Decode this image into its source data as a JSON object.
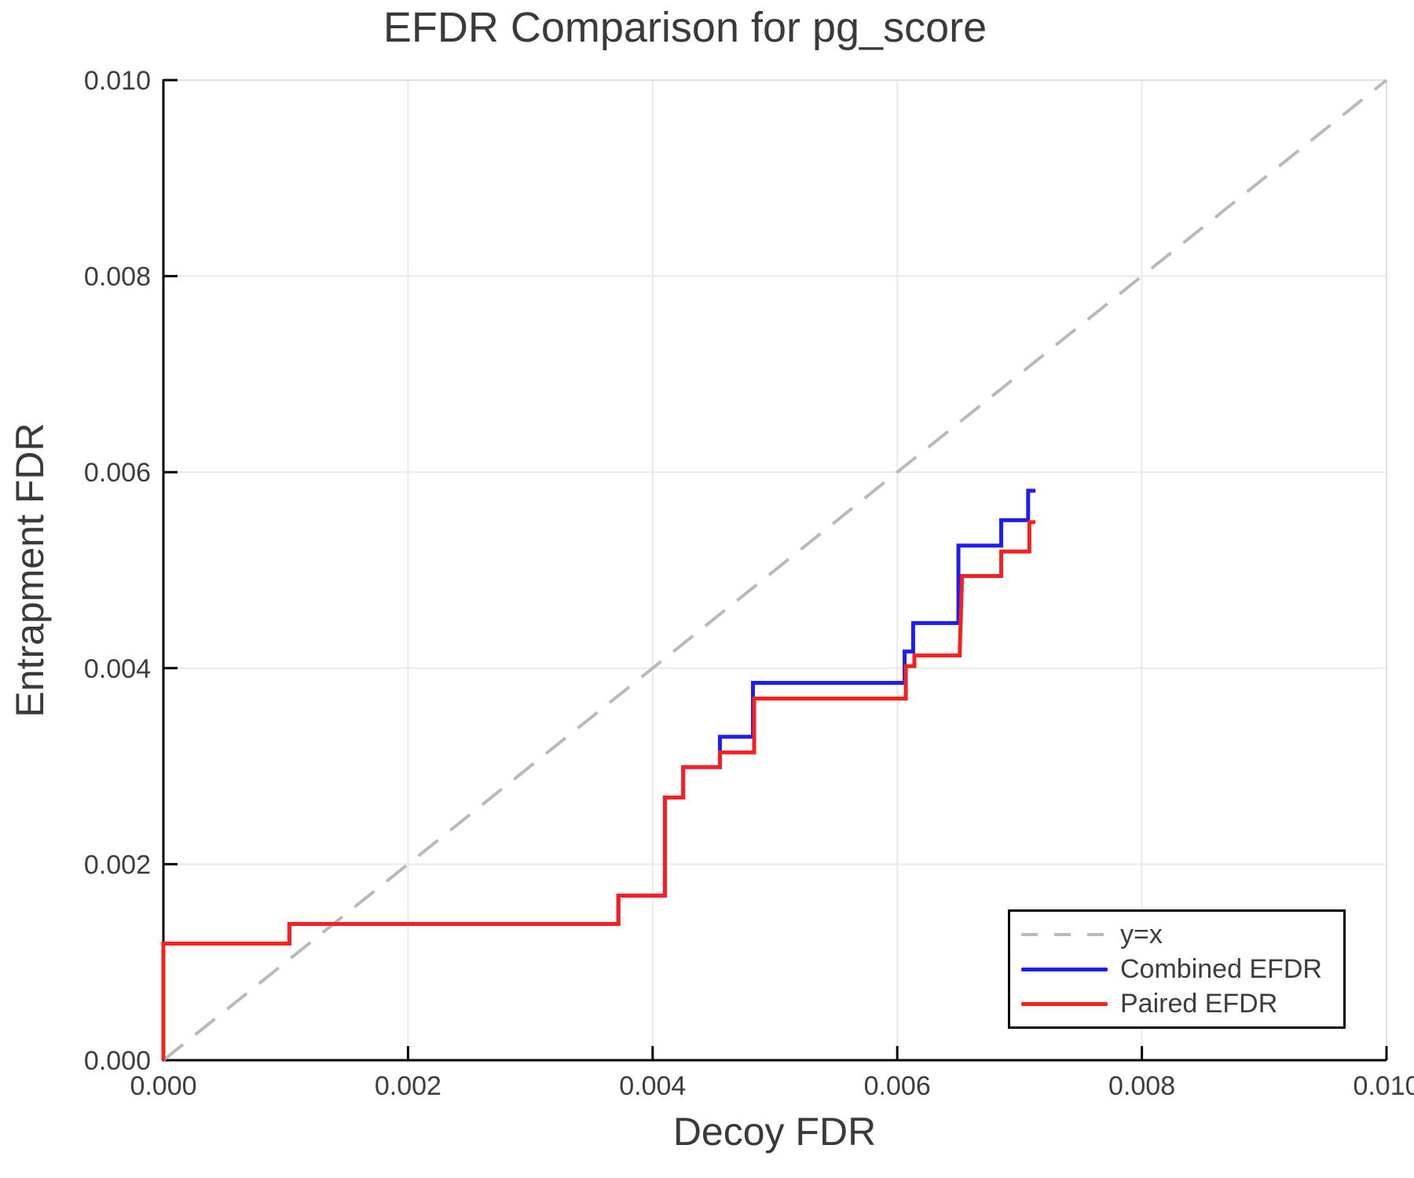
{
  "chart_data": {
    "type": "line",
    "subtype": "step-curves",
    "title": "EFDR Comparison for pg_score",
    "xlabel": "Decoy FDR",
    "ylabel": "Entrapment FDR",
    "xlim": [
      0.0,
      0.01
    ],
    "ylim": [
      0.0,
      0.01
    ],
    "grid": true,
    "x_ticks": {
      "values": [
        0.0,
        0.002,
        0.004,
        0.006,
        0.008,
        0.01
      ],
      "labels": [
        "0.000",
        "0.002",
        "0.004",
        "0.006",
        "0.008",
        "0.010"
      ]
    },
    "y_ticks": {
      "values": [
        0.0,
        0.002,
        0.004,
        0.006,
        0.008,
        0.01
      ],
      "labels": [
        "0.000",
        "0.002",
        "0.004",
        "0.006",
        "0.008",
        "0.010"
      ]
    },
    "reference_line": {
      "name": "y=x",
      "from": [
        0.0,
        0.0
      ],
      "to": [
        0.01,
        0.01
      ],
      "color": "#b9b9b9",
      "style": "dashed"
    },
    "series": [
      {
        "name": "Combined EFDR",
        "color": "#1e1ef0",
        "style": "solid",
        "points": [
          [
            0.0,
            0.0
          ],
          [
            0.0,
            0.00119
          ],
          [
            0.00103,
            0.00119
          ],
          [
            0.00103,
            0.00139
          ],
          [
            0.00372,
            0.00139
          ],
          [
            0.00372,
            0.00168
          ],
          [
            0.0041,
            0.00168
          ],
          [
            0.0041,
            0.00268
          ],
          [
            0.00425,
            0.00268
          ],
          [
            0.00425,
            0.00299
          ],
          [
            0.00455,
            0.00299
          ],
          [
            0.00455,
            0.0033
          ],
          [
            0.00482,
            0.0033
          ],
          [
            0.00482,
            0.00385
          ],
          [
            0.00606,
            0.00385
          ],
          [
            0.00606,
            0.00417
          ],
          [
            0.00613,
            0.00417
          ],
          [
            0.00613,
            0.00446
          ],
          [
            0.0065,
            0.00446
          ],
          [
            0.0065,
            0.00525
          ],
          [
            0.00685,
            0.00525
          ],
          [
            0.00685,
            0.00551
          ],
          [
            0.00707,
            0.00551
          ],
          [
            0.00707,
            0.00581
          ],
          [
            0.00713,
            0.00581
          ]
        ]
      },
      {
        "name": "Paired EFDR",
        "color": "#f52020",
        "style": "solid",
        "points": [
          [
            0.0,
            0.0
          ],
          [
            0.0,
            0.00119
          ],
          [
            0.00103,
            0.00119
          ],
          [
            0.00103,
            0.00139
          ],
          [
            0.00372,
            0.00139
          ],
          [
            0.00372,
            0.00168
          ],
          [
            0.0041,
            0.00168
          ],
          [
            0.0041,
            0.00268
          ],
          [
            0.00425,
            0.00268
          ],
          [
            0.00425,
            0.00299
          ],
          [
            0.00455,
            0.00299
          ],
          [
            0.00455,
            0.00314
          ],
          [
            0.00483,
            0.00314
          ],
          [
            0.00483,
            0.00369
          ],
          [
            0.00607,
            0.00369
          ],
          [
            0.00607,
            0.00402
          ],
          [
            0.00614,
            0.00402
          ],
          [
            0.00614,
            0.00413
          ],
          [
            0.00651,
            0.00413
          ],
          [
            0.00653,
            0.00494
          ],
          [
            0.00685,
            0.00494
          ],
          [
            0.00685,
            0.00519
          ],
          [
            0.00708,
            0.00519
          ],
          [
            0.00708,
            0.00549
          ],
          [
            0.00713,
            0.00549
          ]
        ]
      }
    ],
    "legend": {
      "position": "bottom-right",
      "entries": [
        {
          "label": "y=x",
          "color": "#b9b9b9",
          "style": "dashed"
        },
        {
          "label": "Combined EFDR",
          "color": "#1e1ef0",
          "style": "solid"
        },
        {
          "label": "Paired EFDR",
          "color": "#f52020",
          "style": "solid"
        }
      ]
    },
    "style_colors": {
      "text": "#3a3a3a",
      "tick_text": "#3d3d3d",
      "grid": "#e9e9e9",
      "spine_dark": "#000000",
      "spine_light": "#e0e0e0",
      "background": "#ffffff"
    }
  }
}
